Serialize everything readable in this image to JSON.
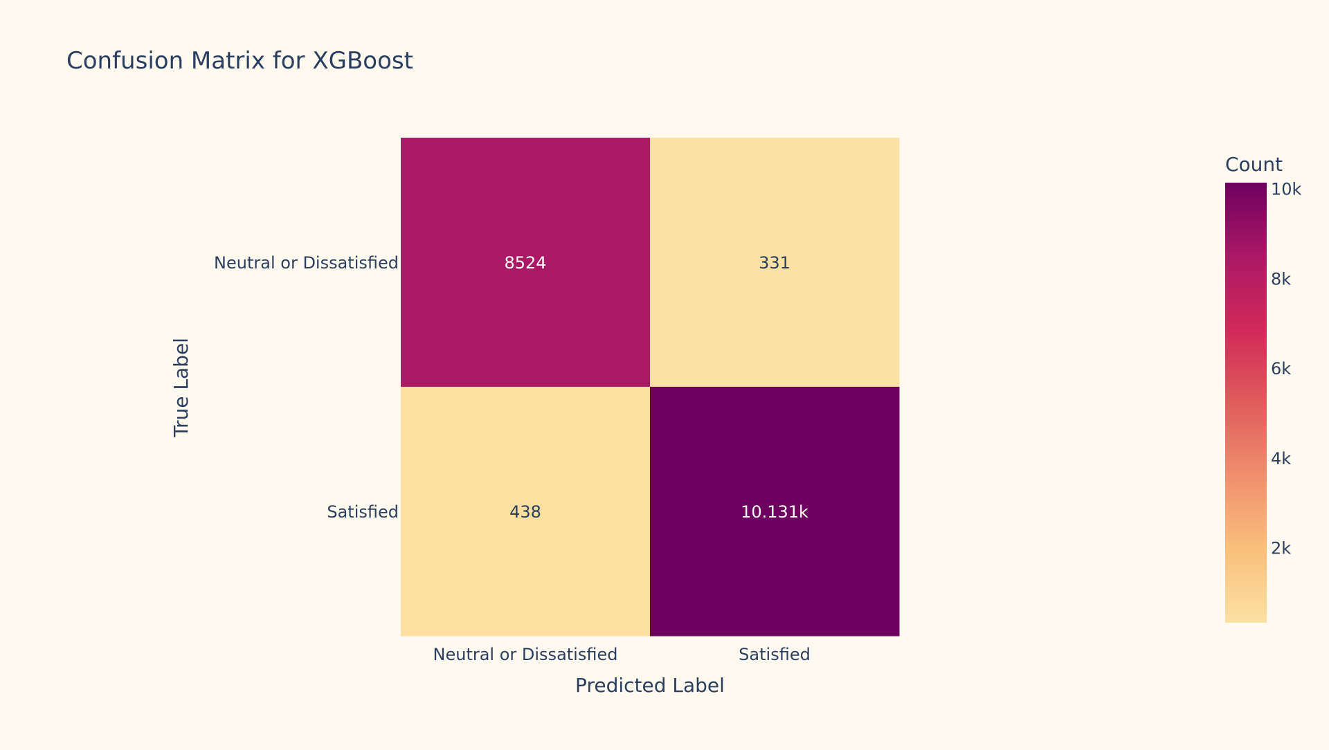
{
  "chart_data": {
    "type": "heatmap",
    "title": "Confusion Matrix for XGBoost",
    "xlabel": "Predicted Label",
    "ylabel": "True Label",
    "x_categories": [
      "Neutral or Dissatisfied",
      "Satisfied"
    ],
    "y_categories": [
      "Neutral or Dissatisfied",
      "Satisfied"
    ],
    "z": [
      [
        8524,
        331
      ],
      [
        438,
        10131
      ]
    ],
    "cell_text": [
      [
        "8524",
        "331"
      ],
      [
        "438",
        "10.131k"
      ]
    ],
    "colorbar": {
      "title": "Count",
      "range": [
        331,
        10131
      ],
      "tickvals": [
        2000,
        4000,
        6000,
        8000,
        10000
      ],
      "ticktext": [
        "2k",
        "4k",
        "6k",
        "8k",
        "10k"
      ]
    },
    "colorscale": [
      "#fce1a4",
      "#fabf7b",
      "#f08f6e",
      "#e05c5c",
      "#d12959",
      "#ab1866",
      "#6e005f"
    ]
  }
}
